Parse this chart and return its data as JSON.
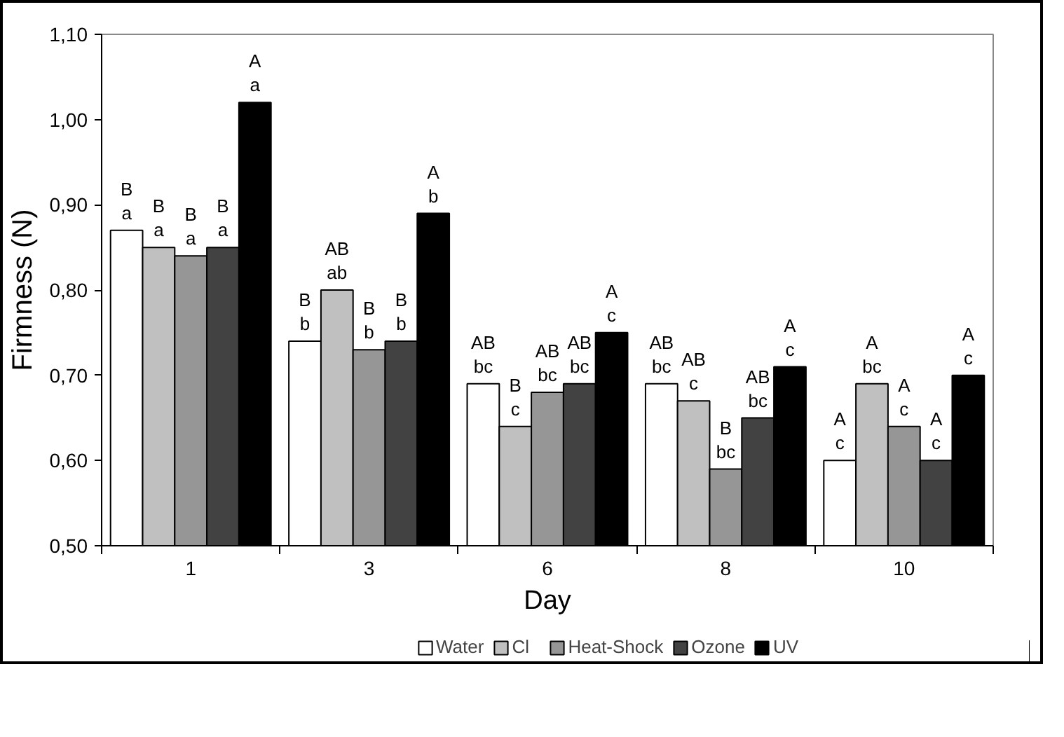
{
  "chart_data": {
    "type": "bar",
    "xlabel": "Day",
    "ylabel": "Firmness (N)",
    "categories": [
      "1",
      "3",
      "6",
      "8",
      "10"
    ],
    "series": [
      {
        "name": "Water",
        "color": "#ffffff",
        "values": [
          0.87,
          0.74,
          0.69,
          0.69,
          0.6
        ]
      },
      {
        "name": "Cl",
        "color": "#c0c0c0",
        "values": [
          0.85,
          0.8,
          0.64,
          0.67,
          0.69
        ]
      },
      {
        "name": "Heat-Shock",
        "color": "#969696",
        "values": [
          0.84,
          0.73,
          0.68,
          0.59,
          0.64
        ]
      },
      {
        "name": "Ozone",
        "color": "#424242",
        "values": [
          0.85,
          0.74,
          0.69,
          0.65,
          0.6
        ]
      },
      {
        "name": "UV",
        "color": "#000000",
        "values": [
          1.02,
          0.89,
          0.75,
          0.71,
          0.7
        ]
      }
    ],
    "ylim": [
      0.5,
      1.1
    ],
    "yticks": [
      {
        "value": 0.5,
        "label": "0,50"
      },
      {
        "value": 0.6,
        "label": "0,60"
      },
      {
        "value": 0.7,
        "label": "0,70"
      },
      {
        "value": 0.8,
        "label": "0,80"
      },
      {
        "value": 0.9,
        "label": "0,90"
      },
      {
        "value": 1.0,
        "label": "1,00"
      },
      {
        "value": 1.1,
        "label": "1,10"
      }
    ],
    "grid": false,
    "legend": "bottom",
    "annotations": [
      "B",
      "a",
      "B",
      "a",
      "B",
      "a",
      "B",
      "a",
      "A",
      "a",
      "B",
      "b",
      "AB",
      "ab",
      "B",
      "b",
      "B",
      "b",
      "A",
      "b",
      "AB",
      "bc",
      "B",
      "c",
      "AB",
      "bc",
      "AB",
      "bc",
      "A",
      "c",
      "AB",
      "bc",
      "AB",
      "c",
      "B",
      "bc",
      "AB",
      "bc",
      "A",
      "c",
      "A",
      "c",
      "A",
      "bc",
      "A",
      "c",
      "A",
      "c",
      "A",
      "c"
    ]
  }
}
